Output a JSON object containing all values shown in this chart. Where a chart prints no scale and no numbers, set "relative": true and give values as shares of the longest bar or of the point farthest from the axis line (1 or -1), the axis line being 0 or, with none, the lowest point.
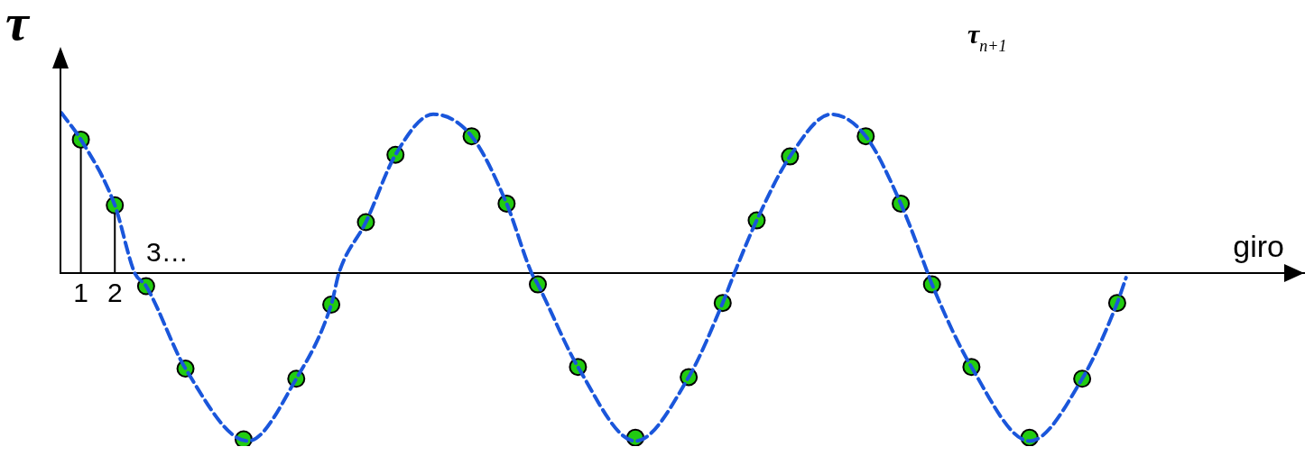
{
  "chart_data": {
    "type": "line",
    "relative": true,
    "xlabel": "giro",
    "annotations": [
      "τ",
      "τ$_{n+1}$",
      "3…"
    ],
    "xlim": [
      0.4,
      37
    ],
    "xticks": [
      1,
      2
    ],
    "tick_labels": "x",
    "grid": false,
    "legend": false,
    "series": [
      {
        "type": "line",
        "line_style": "dashed",
        "marker": "none",
        "color": "#1a56db",
        "x": [
          0.42,
          1,
          2,
          2.58,
          2.92,
          4.08,
          5.92,
          7.34,
          8.37,
          8.6,
          9.39,
          10.26,
          11.37,
          12.5,
          13.53,
          14.26,
          14.45,
          15.63,
          17.32,
          18.89,
          19.89,
          20.24,
          20.89,
          21.87,
          23.08,
          24.1,
          25.13,
          25.92,
          26.05,
          27.21,
          28.92,
          30.47,
          31.5,
          31.76
        ],
        "values": [
          0.95,
          0.79,
          0.4,
          0,
          -0.08,
          -0.57,
          -1,
          -0.63,
          -0.19,
          0,
          0.3,
          0.7,
          0.94,
          0.81,
          0.41,
          0,
          -0.07,
          -0.56,
          -1,
          -0.62,
          -0.18,
          0,
          0.31,
          0.69,
          0.94,
          0.81,
          0.41,
          0,
          -0.07,
          -0.56,
          -1,
          -0.63,
          -0.18,
          -0.03
        ]
      },
      {
        "type": "lollipop",
        "marker": "circle",
        "color": "#22cc11",
        "x": [
          1,
          2
        ],
        "values": [
          0.79,
          0.4
        ]
      },
      {
        "type": "scatter",
        "marker": "circle",
        "color": "#22cc11",
        "x": [
          2.92,
          4.08,
          5.79,
          7.34,
          8.37,
          9.39,
          10.26,
          12.5,
          13.53,
          14.45,
          15.63,
          17.32,
          18.89,
          19.89,
          20.89,
          21.87,
          24.1,
          25.13,
          26.05,
          27.21,
          28.92,
          30.47,
          31.5
        ],
        "values": [
          -0.08,
          -0.57,
          -0.99,
          -0.63,
          -0.19,
          0.3,
          0.7,
          0.81,
          0.41,
          -0.07,
          -0.56,
          -0.98,
          -0.62,
          -0.18,
          0.31,
          0.69,
          0.81,
          0.41,
          -0.07,
          -0.56,
          -0.98,
          -0.63,
          -0.18
        ]
      }
    ]
  }
}
